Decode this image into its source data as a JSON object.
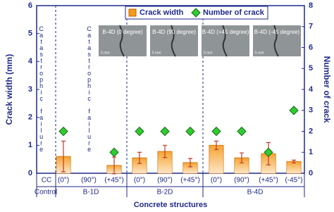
{
  "chart_data": {
    "type": "bar",
    "categories": [
      "CC",
      "(0°)",
      "(90°)",
      "(+45°)",
      "(0°)",
      "(90°)",
      "(+45°)",
      "(0°)",
      "(90°)",
      "(+45°)",
      "(-45°)"
    ],
    "groups": [
      "Control",
      "B-1D",
      "B-2D",
      "B-4D"
    ],
    "x_label": "Concrete structures",
    "y_label": "Crack width (mm)",
    "y2_label": "Number of crack",
    "ylim": [
      0,
      6
    ],
    "yticks": [
      0,
      1,
      2,
      3,
      4,
      5,
      6
    ],
    "y2lim": [
      0,
      8
    ],
    "y2ticks": [
      0,
      1,
      2,
      3,
      4,
      5,
      6,
      7,
      8
    ],
    "series": [
      {
        "name": "Crack width",
        "color": "#f59a1b",
        "values": [
          null,
          0.6,
          null,
          0.28,
          0.55,
          0.78,
          0.38,
          1.0,
          0.55,
          0.7,
          0.42
        ],
        "errors": [
          null,
          0.55,
          null,
          0.3,
          0.2,
          0.22,
          0.15,
          0.15,
          0.18,
          0.4,
          0.05
        ]
      },
      {
        "name": "Number of crack",
        "color": "#2ecc2e",
        "axis": "y2",
        "values": [
          null,
          2,
          null,
          1,
          2,
          2,
          2,
          2,
          2,
          1,
          3
        ]
      }
    ],
    "annotations": [
      "Catastrophic failure",
      "Catastrophic failure"
    ],
    "photos": [
      "B-4D (0 degree)",
      "B-4D (90 degree)",
      "B-4D (+45 degree)",
      "B-4D (-45 degree)"
    ],
    "photo_scale": "5 mm"
  }
}
